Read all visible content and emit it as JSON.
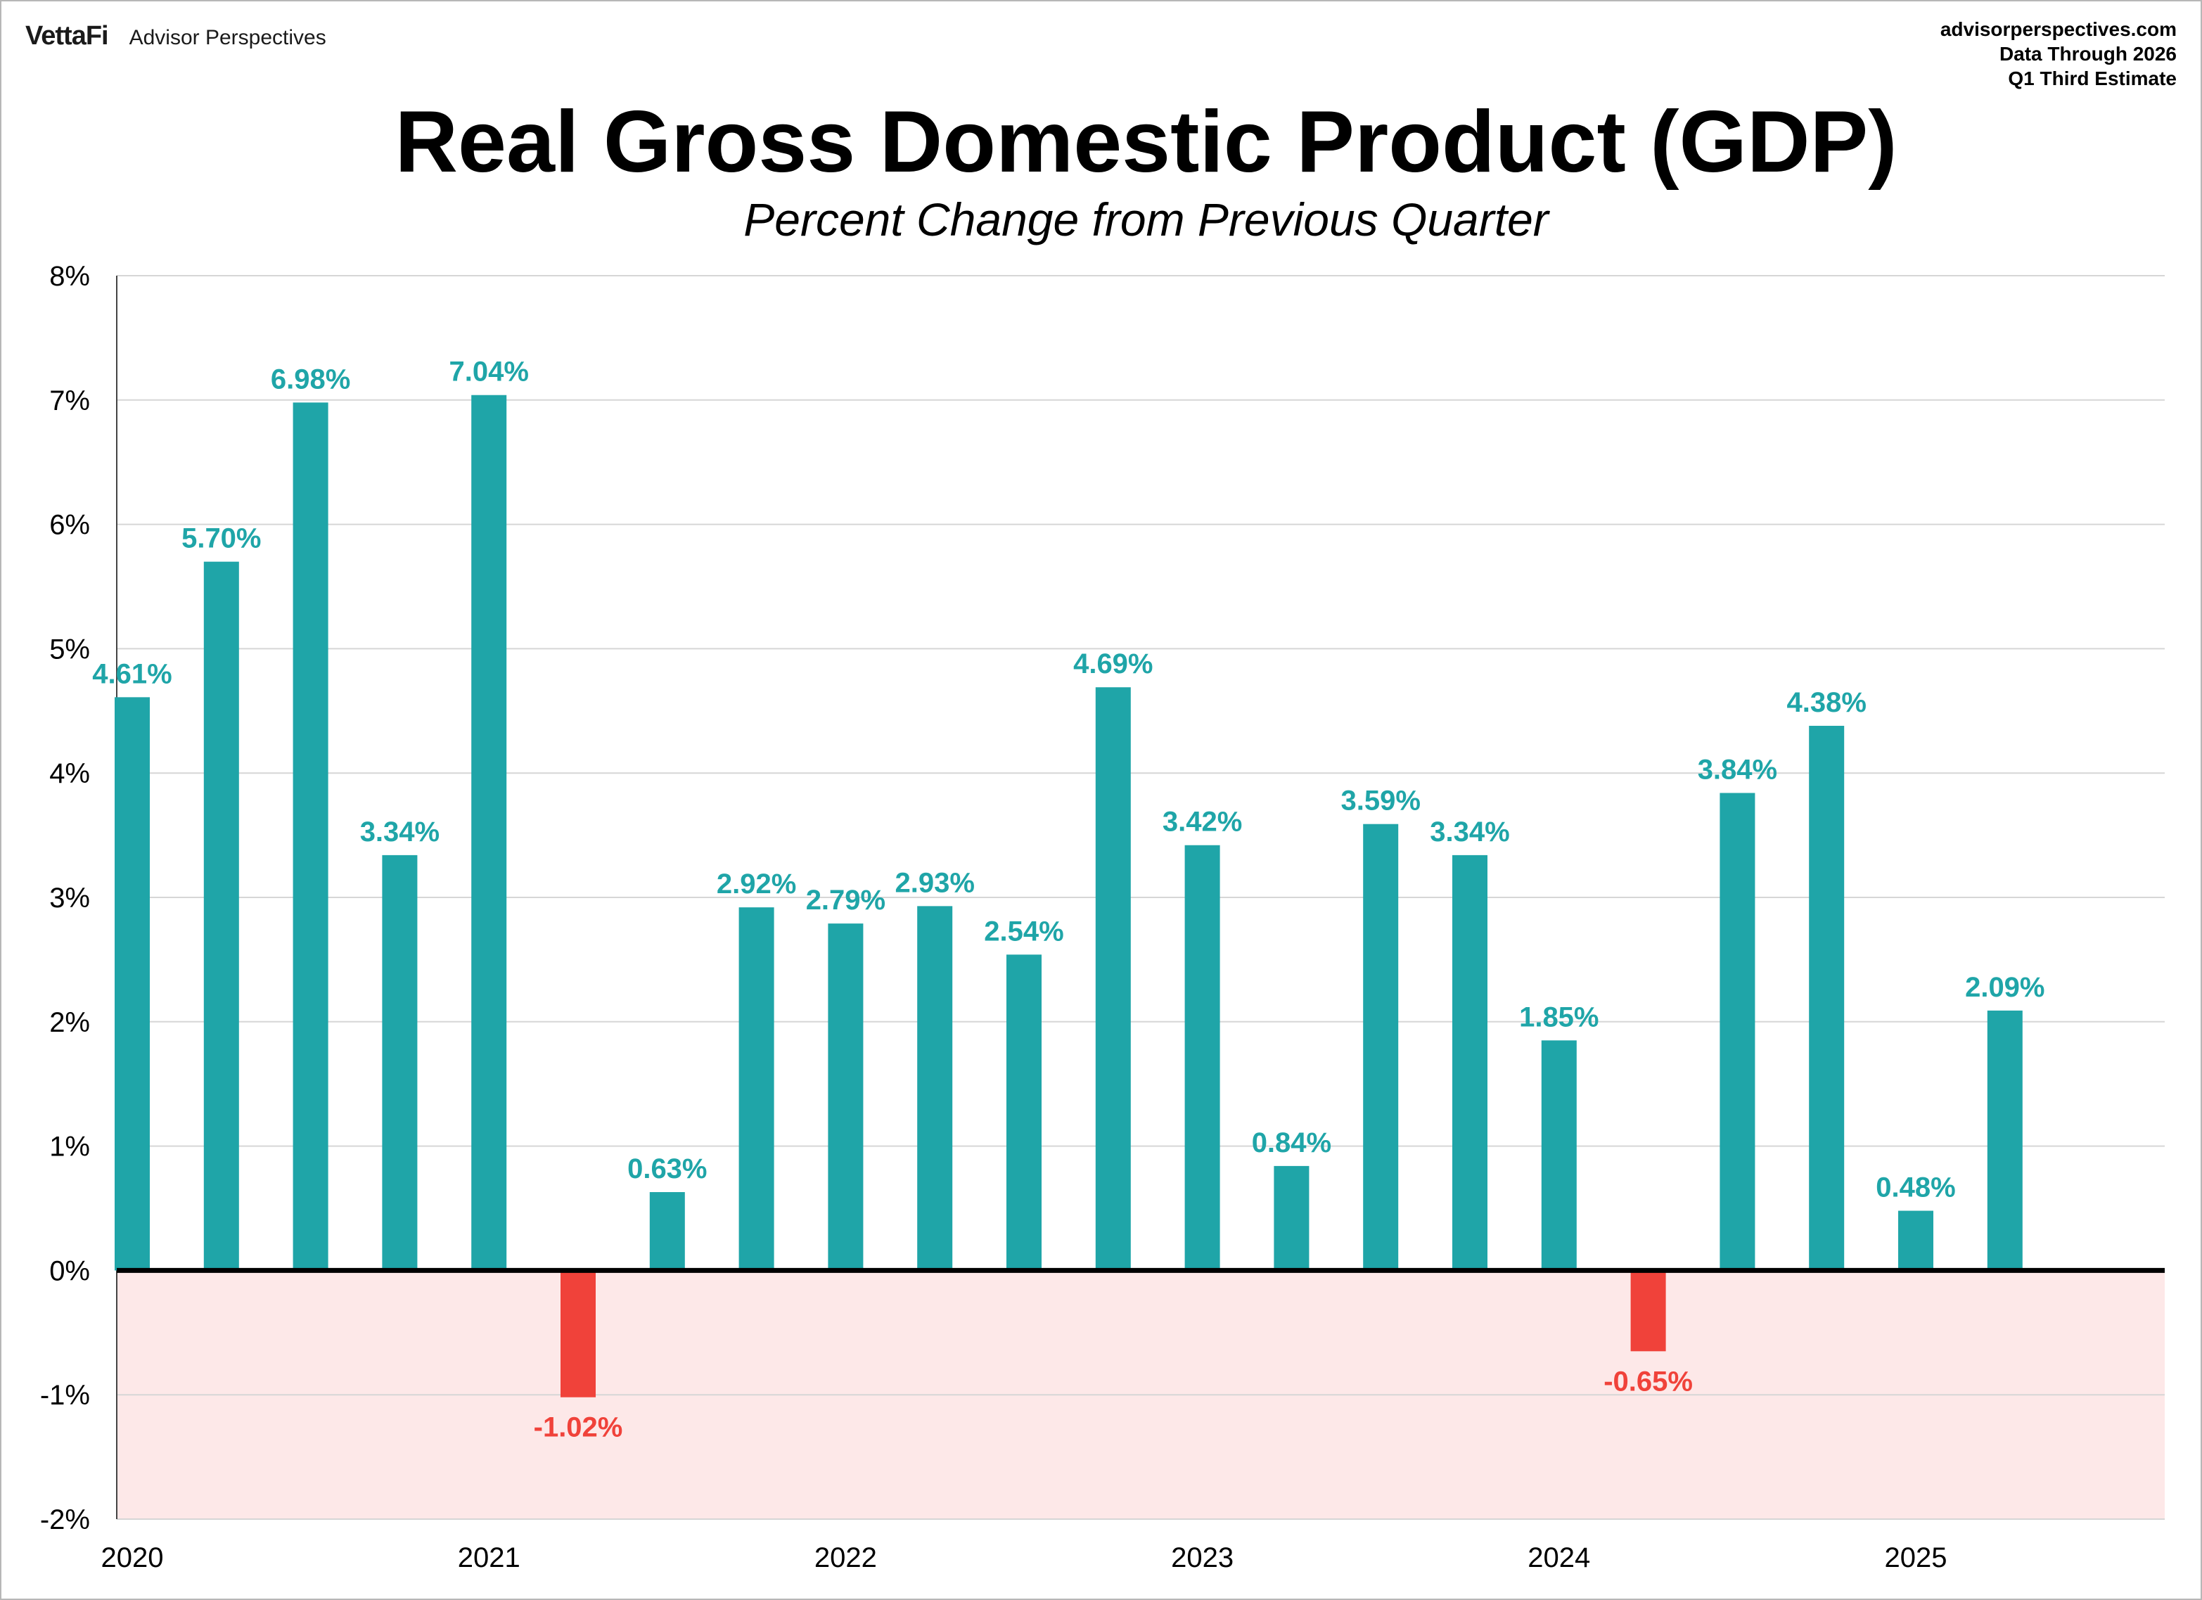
{
  "header": {
    "brand_logo": "VettaFi",
    "brand_name": "Advisor Perspectives",
    "source_lines": [
      "advisorperspectives.com",
      "Data Through 2026",
      "Q1 Third Estimate"
    ]
  },
  "colors": {
    "positive": "#1fa5a8",
    "negative": "#f0423a",
    "negative_zone": "#fde8e8",
    "gridline": "#d6d6d6",
    "zero_line": "#000000"
  },
  "chart_data": {
    "type": "bar",
    "title": "Real Gross Domestic Product (GDP)",
    "subtitle": "Percent Change from Previous Quarter",
    "ylim": [
      -2,
      8
    ],
    "y_ticks": [
      "-2%",
      "-1%",
      "0%",
      "1%",
      "2%",
      "3%",
      "4%",
      "5%",
      "6%",
      "7%",
      "8%"
    ],
    "year_labels": [
      "2020",
      "2021",
      "2022",
      "2023",
      "2024",
      "2025"
    ],
    "grid": true,
    "negative_region_shaded": true,
    "values": [
      4.61,
      5.7,
      6.98,
      3.34,
      7.04,
      -1.02,
      0.63,
      2.92,
      2.79,
      2.93,
      2.54,
      4.69,
      3.42,
      0.84,
      3.59,
      3.34,
      1.85,
      -0.65,
      3.84,
      4.38,
      0.48,
      2.09
    ],
    "data_labels": [
      "4.61%",
      "5.70%",
      "6.98%",
      "3.34%",
      "7.04%",
      "-1.02%",
      "0.63%",
      "2.92%",
      "2.79%",
      "2.93%",
      "2.54%",
      "4.69%",
      "3.42%",
      "0.84%",
      "3.59%",
      "3.34%",
      "1.85%",
      "-0.65%",
      "3.84%",
      "4.38%",
      "0.48%",
      "2.09%"
    ]
  }
}
